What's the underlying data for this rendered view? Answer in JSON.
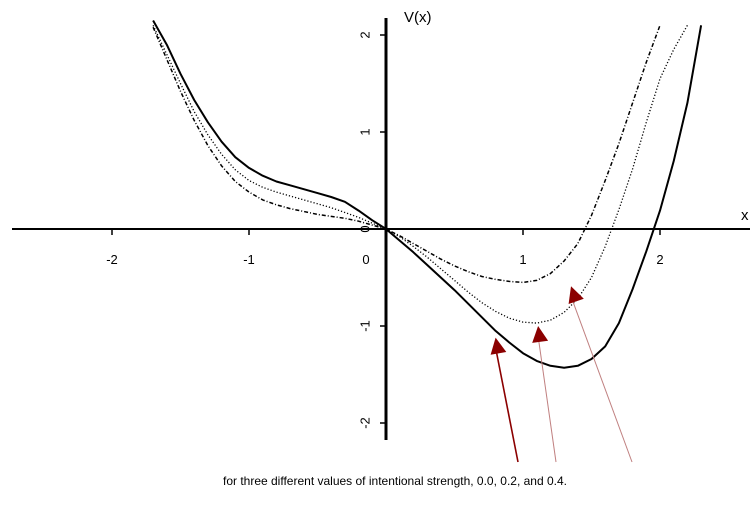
{
  "chart_data": {
    "type": "line",
    "title": "",
    "xlabel": "x",
    "ylabel": "V(x)",
    "xlim": [
      -2.75,
      2.75
    ],
    "ylim": [
      -2.15,
      2.2
    ],
    "grid": false,
    "x_ticks": [
      {
        "value": -2,
        "label": "-2"
      },
      {
        "value": -1,
        "label": "-1"
      },
      {
        "value": 0,
        "label": "0"
      },
      {
        "value": 1,
        "label": "1"
      },
      {
        "value": 2,
        "label": "2"
      }
    ],
    "y_ticks": [
      {
        "value": 2,
        "label": "2"
      },
      {
        "value": 1,
        "label": "1"
      },
      {
        "value": 0,
        "label": "0"
      },
      {
        "value": -1,
        "label": "-1"
      },
      {
        "value": -2,
        "label": "-2"
      }
    ],
    "series": [
      {
        "style": "solid",
        "x": [
          -1.7,
          -1.6,
          -1.5,
          -1.4,
          -1.3,
          -1.2,
          -1.1,
          -1.0,
          -0.9,
          -0.8,
          -0.7,
          -0.6,
          -0.5,
          -0.4,
          -0.3,
          -0.2,
          -0.1,
          0.0,
          0.1,
          0.2,
          0.3,
          0.4,
          0.5,
          0.6,
          0.7,
          0.8,
          0.9,
          1.0,
          1.1,
          1.2,
          1.3,
          1.4,
          1.5,
          1.6,
          1.7,
          1.8,
          1.9,
          2.0,
          2.1,
          2.2,
          2.3
        ],
        "y": [
          2.15,
          1.9,
          1.6,
          1.33,
          1.1,
          0.9,
          0.74,
          0.63,
          0.55,
          0.49,
          0.45,
          0.41,
          0.37,
          0.33,
          0.28,
          0.19,
          0.09,
          0.0,
          -0.12,
          -0.24,
          -0.37,
          -0.5,
          -0.63,
          -0.77,
          -0.91,
          -1.05,
          -1.17,
          -1.28,
          -1.36,
          -1.41,
          -1.43,
          -1.41,
          -1.34,
          -1.21,
          -0.97,
          -0.62,
          -0.23,
          0.19,
          0.7,
          1.3,
          2.1
        ]
      },
      {
        "style": "dotted",
        "x": [
          -1.7,
          -1.6,
          -1.5,
          -1.4,
          -1.3,
          -1.2,
          -1.1,
          -1.0,
          -0.9,
          -0.8,
          -0.7,
          -0.6,
          -0.5,
          -0.4,
          -0.3,
          -0.2,
          -0.1,
          0.0,
          0.1,
          0.2,
          0.3,
          0.4,
          0.5,
          0.6,
          0.7,
          0.8,
          0.9,
          1.0,
          1.1,
          1.2,
          1.3,
          1.4,
          1.5,
          1.6,
          1.7,
          1.8,
          1.9,
          2.0,
          2.1,
          2.2
        ],
        "y": [
          2.1,
          1.8,
          1.5,
          1.21,
          0.97,
          0.77,
          0.61,
          0.5,
          0.43,
          0.38,
          0.34,
          0.3,
          0.26,
          0.22,
          0.17,
          0.12,
          0.06,
          0.0,
          -0.08,
          -0.18,
          -0.29,
          -0.41,
          -0.53,
          -0.65,
          -0.76,
          -0.85,
          -0.92,
          -0.96,
          -0.97,
          -0.94,
          -0.86,
          -0.72,
          -0.5,
          -0.18,
          0.2,
          0.62,
          1.1,
          1.55,
          1.85,
          2.1
        ]
      },
      {
        "style": "dash-dot",
        "x": [
          -1.7,
          -1.6,
          -1.5,
          -1.4,
          -1.3,
          -1.2,
          -1.1,
          -1.0,
          -0.9,
          -0.8,
          -0.7,
          -0.6,
          -0.5,
          -0.4,
          -0.3,
          -0.2,
          -0.1,
          0.0,
          0.1,
          0.2,
          0.3,
          0.4,
          0.5,
          0.6,
          0.7,
          0.8,
          0.9,
          1.0,
          1.1,
          1.2,
          1.3,
          1.4,
          1.5,
          1.6,
          1.7,
          1.8,
          1.9,
          2.0
        ],
        "y": [
          2.08,
          1.75,
          1.42,
          1.12,
          0.86,
          0.65,
          0.49,
          0.38,
          0.3,
          0.25,
          0.21,
          0.18,
          0.15,
          0.13,
          0.11,
          0.08,
          0.04,
          0.0,
          -0.07,
          -0.15,
          -0.23,
          -0.31,
          -0.38,
          -0.44,
          -0.49,
          -0.52,
          -0.54,
          -0.55,
          -0.53,
          -0.46,
          -0.33,
          -0.15,
          0.14,
          0.5,
          0.88,
          1.3,
          1.72,
          2.1
        ]
      }
    ],
    "annotations": [
      {
        "type": "arrow",
        "color": "#8b0000",
        "tip": [
          0.8,
          -1.12
        ]
      },
      {
        "type": "arrow",
        "color": "#8b0000",
        "tip": [
          1.11,
          -1.0
        ]
      },
      {
        "type": "arrow",
        "color": "#8b0000",
        "tip": [
          1.35,
          -0.59
        ]
      }
    ],
    "caption": "for three different values of intentional strength, 0.0, 0.2, and 0.4.",
    "colors": {
      "curves": "#000000",
      "arrow_head": "#8b0000",
      "arrow_line": "#c08080"
    }
  }
}
